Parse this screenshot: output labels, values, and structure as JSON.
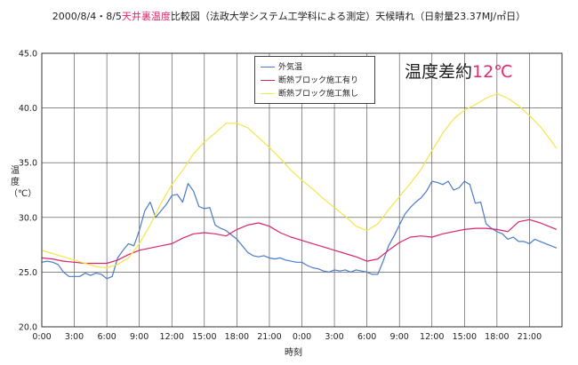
{
  "title_parts": {
    "pre": "2000/8/4・8/5",
    "highlight": "天井裏温度",
    "post": "比較図（法政大学システム工学科による測定）天候晴れ（日射量23.37MJ/㎡日）"
  },
  "callout": {
    "text": "温度差約",
    "value": "12℃"
  },
  "colors": {
    "outdoor": "#4a7bc8",
    "insulated": "#d8246c",
    "uninsulated": "#f2e64a",
    "grid": "#444444",
    "accent": "#e8266e"
  },
  "chart_data": {
    "type": "line",
    "xlabel": "時刻",
    "ylabel": "温度（℃）",
    "ylim": [
      20.0,
      45.0
    ],
    "yticks": [
      "20.0",
      "25.0",
      "30.0",
      "35.0",
      "40.0",
      "45.0"
    ],
    "xlim": [
      0,
      48
    ],
    "xtick_labels": [
      "0:00",
      "3:00",
      "6:00",
      "9:00",
      "12:00",
      "15:00",
      "18:00",
      "21:00",
      "0:00",
      "3:00",
      "6:00",
      "9:00",
      "12:00",
      "15:00",
      "18:00",
      "21:00"
    ],
    "grid": true,
    "legend": "top-center",
    "series": [
      {
        "name": "外気温",
        "key": "outdoor",
        "x": [
          0,
          0.5,
          1,
          1.5,
          2,
          2.5,
          3,
          3.5,
          4,
          4.5,
          5,
          5.5,
          6,
          6.5,
          7,
          7.5,
          8,
          8.5,
          9,
          9.5,
          10,
          10.5,
          11,
          11.5,
          12,
          12.5,
          13,
          13.5,
          14,
          14.5,
          15,
          15.5,
          16,
          16.5,
          17,
          17.5,
          18,
          18.5,
          19,
          19.5,
          20,
          20.5,
          21,
          21.5,
          22,
          22.5,
          23,
          23.5,
          24,
          24.5,
          25,
          25.5,
          26,
          26.5,
          27,
          27.5,
          28,
          28.5,
          29,
          29.5,
          30,
          30.5,
          31,
          31.5,
          32,
          32.5,
          33,
          33.5,
          34,
          34.5,
          35,
          35.5,
          36,
          36.5,
          37,
          37.5,
          38,
          38.5,
          39,
          39.5,
          40,
          40.5,
          41,
          41.5,
          42,
          42.5,
          43,
          43.5,
          44,
          44.5,
          45,
          45.5,
          46,
          46.5,
          47,
          47.5
        ],
        "y": [
          25.9,
          26.0,
          25.9,
          25.7,
          25.0,
          24.6,
          24.6,
          24.6,
          24.9,
          24.7,
          24.9,
          24.8,
          24.4,
          24.6,
          26.3,
          27.0,
          27.6,
          27.4,
          28.8,
          30.6,
          31.4,
          30.0,
          30.6,
          31.2,
          32.0,
          32.1,
          31.4,
          33.1,
          32.4,
          31.0,
          30.8,
          30.9,
          29.3,
          29.0,
          28.8,
          28.4,
          28.0,
          27.4,
          26.8,
          26.5,
          26.4,
          26.5,
          26.3,
          26.2,
          26.3,
          26.1,
          26.0,
          25.9,
          25.9,
          25.6,
          25.4,
          25.3,
          25.1,
          25.0,
          25.2,
          25.1,
          25.2,
          25.0,
          25.2,
          25.1,
          25.0,
          24.8,
          24.8,
          26.0,
          27.4,
          28.3,
          29.3,
          30.3,
          30.9,
          31.4,
          31.8,
          32.4,
          33.3,
          33.2,
          33.0,
          33.3,
          32.5,
          32.7,
          33.3,
          33.0,
          31.3,
          31.4,
          29.4,
          29.0,
          28.7,
          28.5,
          28.0,
          28.2,
          27.8,
          27.8,
          27.6,
          28.0,
          27.8,
          27.6,
          27.4,
          27.2
        ]
      },
      {
        "name": "断熱ブロック施工有り",
        "key": "insulated",
        "x": [
          0,
          1,
          2,
          3,
          4,
          5,
          6,
          7,
          8,
          9,
          10,
          11,
          12,
          13,
          14,
          15,
          16,
          17,
          18,
          19,
          20,
          21,
          22,
          23,
          24,
          25,
          26,
          27,
          28,
          29,
          30,
          31,
          32,
          33,
          34,
          35,
          36,
          37,
          38,
          39,
          40,
          41,
          42,
          43,
          44,
          45,
          46,
          47,
          47.5
        ],
        "y": [
          26.3,
          26.2,
          26.0,
          25.9,
          25.8,
          25.8,
          25.8,
          26.1,
          26.6,
          27.0,
          27.2,
          27.4,
          27.6,
          28.1,
          28.5,
          28.6,
          28.5,
          28.3,
          28.9,
          29.3,
          29.5,
          29.2,
          28.6,
          28.2,
          27.9,
          27.6,
          27.3,
          27.0,
          26.7,
          26.4,
          26.0,
          26.2,
          27.0,
          27.7,
          28.2,
          28.3,
          28.2,
          28.5,
          28.7,
          28.9,
          29.0,
          29.0,
          28.9,
          28.7,
          29.6,
          29.8,
          29.5,
          29.1,
          28.9
        ]
      },
      {
        "name": "断熱ブロック施工無し",
        "key": "uninsulated",
        "x": [
          0,
          1,
          2,
          3,
          4,
          5,
          6,
          7,
          8,
          9,
          10,
          11,
          12,
          13,
          14,
          15,
          16,
          17,
          18,
          19,
          20,
          21,
          22,
          23,
          24,
          25,
          26,
          27,
          28,
          29,
          30,
          31,
          32,
          33,
          34,
          35,
          36,
          37,
          38,
          39,
          40,
          41,
          42,
          43,
          44,
          45,
          46,
          47,
          47.5
        ],
        "y": [
          27.0,
          26.7,
          26.4,
          26.1,
          25.8,
          25.5,
          25.4,
          25.7,
          26.3,
          27.6,
          29.3,
          31.3,
          33.0,
          34.3,
          35.8,
          36.9,
          37.7,
          38.6,
          38.6,
          38.2,
          37.3,
          36.4,
          35.4,
          34.3,
          33.4,
          32.6,
          31.7,
          30.9,
          30.1,
          29.2,
          28.8,
          29.4,
          30.7,
          31.9,
          33.1,
          34.4,
          36.1,
          37.7,
          39.0,
          39.8,
          40.3,
          40.9,
          41.3,
          40.9,
          40.2,
          39.3,
          38.3,
          37.0,
          36.3
        ]
      }
    ]
  }
}
